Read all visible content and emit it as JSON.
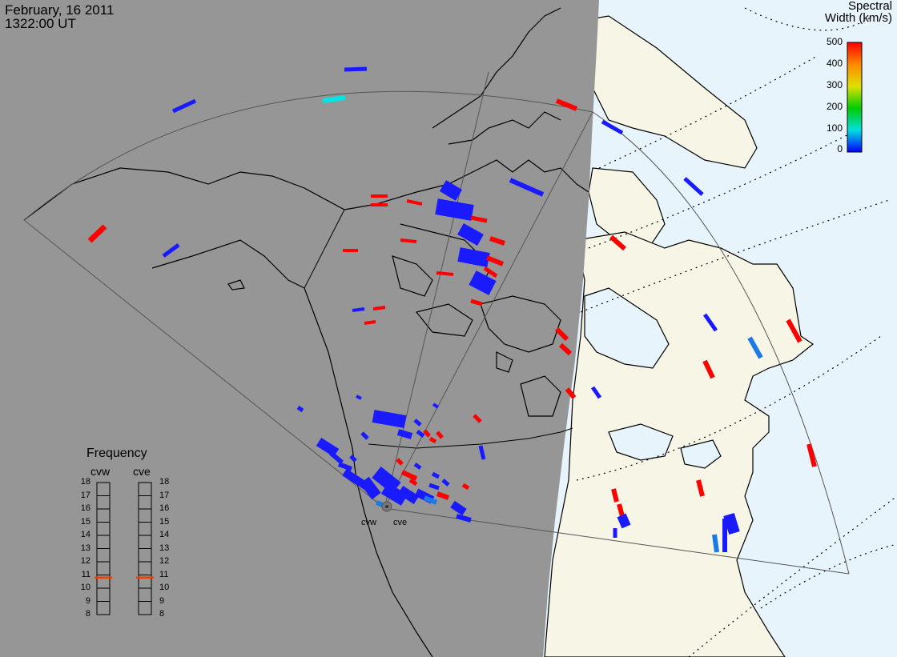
{
  "header": {
    "date": "February, 16 2011",
    "time": "1322:00 UT"
  },
  "colorbar": {
    "title_line1": "Spectral",
    "title_line2": "Width (km/s)",
    "ticks": [
      "500",
      "400",
      "300",
      "200",
      "100",
      "0"
    ],
    "min": 0,
    "max": 500
  },
  "frequency_panel": {
    "title": "Frequency",
    "radars": [
      {
        "name": "cvw",
        "frequency_mhz": 10.8
      },
      {
        "name": "cve",
        "frequency_mhz": 10.8
      }
    ],
    "scale": [
      "18",
      "17",
      "16",
      "15",
      "14",
      "13",
      "12",
      "11",
      "10",
      "9",
      "8"
    ]
  },
  "sites": [
    {
      "name": "cvw"
    },
    {
      "name": "cve"
    }
  ],
  "map_style": {
    "night_color": "#969696",
    "day_land_color": "#f7f5e6",
    "day_ocean_color": "#e8f4fc",
    "coastline_color": "#000000",
    "fov_outline_color": "#555555",
    "frequency_marker_color": "#e8400a"
  }
}
